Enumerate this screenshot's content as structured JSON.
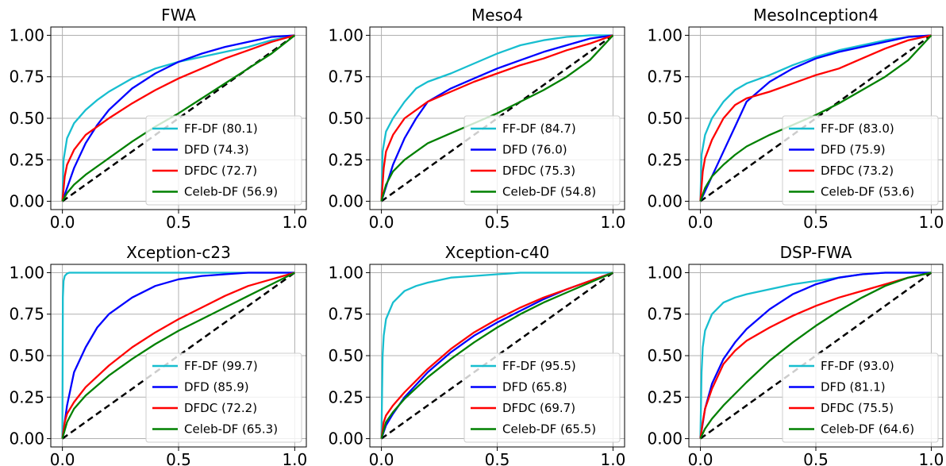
{
  "chart_data": [
    {
      "type": "line",
      "title": "FWA",
      "xticks": [
        "0.0",
        "0.5",
        "1.0"
      ],
      "yticks": [
        "0.00",
        "0.25",
        "0.50",
        "0.75",
        "1.00"
      ],
      "xlim": [
        0,
        1
      ],
      "ylim": [
        0,
        1
      ],
      "grid": true,
      "legend_position": "lower-right",
      "diagonal": true,
      "series": [
        {
          "name": "FF-DF",
          "label": "FF-DF (80.1)",
          "color": "#17becf",
          "x": [
            0,
            0.005,
            0.02,
            0.05,
            0.1,
            0.15,
            0.2,
            0.3,
            0.4,
            0.5,
            0.6,
            0.7,
            0.8,
            0.9,
            1.0
          ],
          "y": [
            0,
            0.25,
            0.38,
            0.47,
            0.55,
            0.61,
            0.66,
            0.74,
            0.8,
            0.84,
            0.87,
            0.9,
            0.93,
            0.97,
            1.0
          ]
        },
        {
          "name": "DFD",
          "label": "DFD (74.3)",
          "color": "#0000ff",
          "x": [
            0,
            0.05,
            0.1,
            0.15,
            0.2,
            0.3,
            0.4,
            0.5,
            0.6,
            0.7,
            0.8,
            0.9,
            1.0
          ],
          "y": [
            0,
            0.2,
            0.35,
            0.46,
            0.55,
            0.68,
            0.77,
            0.84,
            0.89,
            0.93,
            0.96,
            0.99,
            1.0
          ]
        },
        {
          "name": "DFDC",
          "label": "DFDC (72.7)",
          "color": "#ff0000",
          "x": [
            0,
            0.01,
            0.02,
            0.05,
            0.1,
            0.2,
            0.3,
            0.4,
            0.5,
            0.6,
            0.7,
            0.8,
            0.9,
            1.0
          ],
          "y": [
            0,
            0.15,
            0.22,
            0.31,
            0.4,
            0.5,
            0.59,
            0.67,
            0.74,
            0.8,
            0.86,
            0.91,
            0.96,
            1.0
          ]
        },
        {
          "name": "Celeb-DF",
          "label": "Celeb-DF (56.9)",
          "color": "#008000",
          "x": [
            0,
            0.02,
            0.05,
            0.1,
            0.2,
            0.3,
            0.4,
            0.5,
            0.6,
            0.7,
            0.8,
            0.9,
            1.0
          ],
          "y": [
            0,
            0.05,
            0.1,
            0.16,
            0.26,
            0.36,
            0.45,
            0.53,
            0.62,
            0.71,
            0.8,
            0.89,
            1.0
          ]
        }
      ]
    },
    {
      "type": "line",
      "title": "Meso4",
      "xticks": [
        "0.0",
        "0.5",
        "1.0"
      ],
      "yticks": [
        "0.00",
        "0.25",
        "0.50",
        "0.75",
        "1.00"
      ],
      "xlim": [
        0,
        1
      ],
      "ylim": [
        0,
        1
      ],
      "grid": true,
      "legend_position": "lower-right",
      "diagonal": true,
      "series": [
        {
          "name": "FF-DF",
          "label": "FF-DF (84.7)",
          "color": "#17becf",
          "x": [
            0,
            0.005,
            0.02,
            0.05,
            0.1,
            0.15,
            0.2,
            0.3,
            0.4,
            0.5,
            0.6,
            0.7,
            0.8,
            0.9,
            1.0
          ],
          "y": [
            0,
            0.3,
            0.42,
            0.5,
            0.6,
            0.68,
            0.72,
            0.77,
            0.83,
            0.89,
            0.94,
            0.97,
            0.99,
            1.0,
            1.0
          ]
        },
        {
          "name": "DFD",
          "label": "DFD (76.0)",
          "color": "#0000ff",
          "x": [
            0,
            0.05,
            0.1,
            0.15,
            0.2,
            0.3,
            0.4,
            0.5,
            0.6,
            0.7,
            0.8,
            0.9,
            1.0
          ],
          "y": [
            0,
            0.22,
            0.38,
            0.5,
            0.6,
            0.68,
            0.74,
            0.8,
            0.85,
            0.9,
            0.94,
            0.98,
            1.0
          ]
        },
        {
          "name": "DFDC",
          "label": "DFDC (75.3)",
          "color": "#ff0000",
          "x": [
            0,
            0.01,
            0.02,
            0.05,
            0.1,
            0.2,
            0.3,
            0.4,
            0.5,
            0.6,
            0.7,
            0.8,
            0.9,
            1.0
          ],
          "y": [
            0,
            0.2,
            0.3,
            0.4,
            0.5,
            0.6,
            0.66,
            0.72,
            0.77,
            0.82,
            0.86,
            0.91,
            0.95,
            1.0
          ]
        },
        {
          "name": "Celeb-DF",
          "label": "Celeb-DF (54.8)",
          "color": "#008000",
          "x": [
            0,
            0.02,
            0.05,
            0.1,
            0.15,
            0.2,
            0.3,
            0.4,
            0.5,
            0.6,
            0.7,
            0.8,
            0.9,
            1.0
          ],
          "y": [
            0,
            0.1,
            0.18,
            0.25,
            0.3,
            0.35,
            0.41,
            0.47,
            0.53,
            0.6,
            0.67,
            0.75,
            0.85,
            1.0
          ]
        }
      ]
    },
    {
      "type": "line",
      "title": "MesoInception4",
      "xticks": [
        "0.0",
        "0.5",
        "1.0"
      ],
      "yticks": [
        "0.00",
        "0.25",
        "0.50",
        "0.75",
        "1.00"
      ],
      "xlim": [
        0,
        1
      ],
      "ylim": [
        0,
        1
      ],
      "grid": true,
      "legend_position": "lower-right",
      "diagonal": true,
      "series": [
        {
          "name": "FF-DF",
          "label": "FF-DF (83.0)",
          "color": "#17becf",
          "x": [
            0,
            0.005,
            0.02,
            0.05,
            0.1,
            0.15,
            0.2,
            0.3,
            0.4,
            0.5,
            0.6,
            0.7,
            0.8,
            0.9,
            1.0
          ],
          "y": [
            0,
            0.28,
            0.4,
            0.5,
            0.6,
            0.67,
            0.71,
            0.76,
            0.82,
            0.87,
            0.91,
            0.94,
            0.97,
            0.99,
            1.0
          ]
        },
        {
          "name": "DFD",
          "label": "DFD (75.9)",
          "color": "#0000ff",
          "x": [
            0,
            0.05,
            0.1,
            0.15,
            0.2,
            0.3,
            0.4,
            0.5,
            0.6,
            0.7,
            0.8,
            0.9,
            1.0
          ],
          "y": [
            0,
            0.15,
            0.3,
            0.45,
            0.6,
            0.72,
            0.8,
            0.86,
            0.9,
            0.93,
            0.96,
            0.99,
            1.0
          ]
        },
        {
          "name": "DFDC",
          "label": "DFDC (73.2)",
          "color": "#ff0000",
          "x": [
            0,
            0.01,
            0.02,
            0.05,
            0.1,
            0.15,
            0.2,
            0.3,
            0.4,
            0.5,
            0.6,
            0.7,
            0.8,
            0.9,
            1.0
          ],
          "y": [
            0,
            0.18,
            0.26,
            0.37,
            0.5,
            0.58,
            0.62,
            0.66,
            0.71,
            0.76,
            0.8,
            0.86,
            0.92,
            0.97,
            1.0
          ]
        },
        {
          "name": "Celeb-DF",
          "label": "Celeb-DF (53.6)",
          "color": "#008000",
          "x": [
            0,
            0.02,
            0.05,
            0.1,
            0.15,
            0.2,
            0.3,
            0.4,
            0.5,
            0.6,
            0.7,
            0.8,
            0.9,
            1.0
          ],
          "y": [
            0,
            0.08,
            0.15,
            0.22,
            0.28,
            0.33,
            0.4,
            0.46,
            0.52,
            0.59,
            0.67,
            0.75,
            0.85,
            1.0
          ]
        }
      ]
    },
    {
      "type": "line",
      "title": "Xception-c23",
      "xticks": [
        "0.0",
        "0.5",
        "1.0"
      ],
      "yticks": [
        "0.00",
        "0.25",
        "0.50",
        "0.75",
        "1.00"
      ],
      "xlim": [
        0,
        1
      ],
      "ylim": [
        0,
        1
      ],
      "grid": true,
      "legend_position": "lower-right",
      "diagonal": true,
      "series": [
        {
          "name": "FF-DF",
          "label": "FF-DF (99.7)",
          "color": "#17becf",
          "x": [
            0,
            0.002,
            0.005,
            0.01,
            0.02,
            0.03,
            0.05,
            1.0
          ],
          "y": [
            0,
            0.85,
            0.95,
            0.98,
            0.995,
            1.0,
            1.0,
            1.0
          ]
        },
        {
          "name": "DFD",
          "label": "DFD (85.9)",
          "color": "#0000ff",
          "x": [
            0,
            0.02,
            0.05,
            0.1,
            0.15,
            0.2,
            0.3,
            0.4,
            0.5,
            0.6,
            0.7,
            0.8,
            0.9,
            1.0
          ],
          "y": [
            0,
            0.2,
            0.4,
            0.55,
            0.67,
            0.75,
            0.85,
            0.92,
            0.96,
            0.98,
            0.99,
            1.0,
            1.0,
            1.0
          ]
        },
        {
          "name": "DFDC",
          "label": "DFDC (72.2)",
          "color": "#ff0000",
          "x": [
            0,
            0.01,
            0.02,
            0.05,
            0.1,
            0.2,
            0.3,
            0.4,
            0.5,
            0.6,
            0.7,
            0.8,
            0.9,
            1.0
          ],
          "y": [
            0,
            0.1,
            0.15,
            0.22,
            0.31,
            0.44,
            0.55,
            0.64,
            0.72,
            0.79,
            0.86,
            0.92,
            0.96,
            1.0
          ]
        },
        {
          "name": "Celeb-DF",
          "label": "Celeb-DF (65.3)",
          "color": "#008000",
          "x": [
            0,
            0.02,
            0.05,
            0.1,
            0.2,
            0.3,
            0.4,
            0.5,
            0.6,
            0.7,
            0.8,
            0.9,
            1.0
          ],
          "y": [
            0,
            0.1,
            0.18,
            0.26,
            0.38,
            0.48,
            0.57,
            0.65,
            0.72,
            0.79,
            0.86,
            0.93,
            1.0
          ]
        }
      ]
    },
    {
      "type": "line",
      "title": "Xception-c40",
      "xticks": [
        "0.0",
        "0.5",
        "1.0"
      ],
      "yticks": [
        "0.00",
        "0.25",
        "0.50",
        "0.75",
        "1.00"
      ],
      "xlim": [
        0,
        1
      ],
      "ylim": [
        0,
        1
      ],
      "grid": true,
      "legend_position": "lower-right",
      "diagonal": true,
      "series": [
        {
          "name": "FF-DF",
          "label": "FF-DF (95.5)",
          "color": "#17becf",
          "x": [
            0,
            0.005,
            0.01,
            0.02,
            0.05,
            0.1,
            0.15,
            0.2,
            0.3,
            0.4,
            0.5,
            0.6,
            0.7,
            1.0
          ],
          "y": [
            0,
            0.5,
            0.62,
            0.72,
            0.82,
            0.89,
            0.92,
            0.94,
            0.97,
            0.98,
            0.99,
            1.0,
            1.0,
            1.0
          ]
        },
        {
          "name": "DFD",
          "label": "DFD (65.8)",
          "color": "#0000ff",
          "x": [
            0,
            0.02,
            0.05,
            0.1,
            0.2,
            0.3,
            0.4,
            0.5,
            0.6,
            0.7,
            0.8,
            0.9,
            1.0
          ],
          "y": [
            0,
            0.08,
            0.15,
            0.25,
            0.4,
            0.52,
            0.62,
            0.7,
            0.77,
            0.84,
            0.9,
            0.95,
            1.0
          ]
        },
        {
          "name": "DFDC",
          "label": "DFDC (69.7)",
          "color": "#ff0000",
          "x": [
            0,
            0.01,
            0.02,
            0.05,
            0.1,
            0.2,
            0.3,
            0.4,
            0.5,
            0.6,
            0.7,
            0.8,
            0.9,
            1.0
          ],
          "y": [
            0,
            0.1,
            0.14,
            0.2,
            0.28,
            0.42,
            0.54,
            0.64,
            0.72,
            0.79,
            0.85,
            0.9,
            0.95,
            1.0
          ]
        },
        {
          "name": "Celeb-DF",
          "label": "Celeb-DF (65.5)",
          "color": "#008000",
          "x": [
            0,
            0.02,
            0.05,
            0.1,
            0.2,
            0.3,
            0.4,
            0.5,
            0.6,
            0.7,
            0.8,
            0.9,
            1.0
          ],
          "y": [
            0,
            0.1,
            0.16,
            0.24,
            0.37,
            0.48,
            0.58,
            0.67,
            0.75,
            0.82,
            0.88,
            0.94,
            1.0
          ]
        }
      ]
    },
    {
      "type": "line",
      "title": "DSP-FWA",
      "xticks": [
        "0.0",
        "0.5",
        "1.0"
      ],
      "yticks": [
        "0.00",
        "0.25",
        "0.50",
        "0.75",
        "1.00"
      ],
      "xlim": [
        0,
        1
      ],
      "ylim": [
        0,
        1
      ],
      "grid": true,
      "legend_position": "lower-right",
      "diagonal": true,
      "series": [
        {
          "name": "FF-DF",
          "label": "FF-DF (93.0)",
          "color": "#17becf",
          "x": [
            0,
            0.005,
            0.01,
            0.02,
            0.05,
            0.1,
            0.15,
            0.2,
            0.3,
            0.4,
            0.5,
            0.6,
            0.7,
            0.8,
            0.9,
            1.0
          ],
          "y": [
            0,
            0.4,
            0.55,
            0.65,
            0.75,
            0.82,
            0.85,
            0.87,
            0.9,
            0.93,
            0.95,
            0.97,
            0.99,
            1.0,
            1.0,
            1.0
          ]
        },
        {
          "name": "DFD",
          "label": "DFD (81.1)",
          "color": "#0000ff",
          "x": [
            0,
            0.02,
            0.05,
            0.1,
            0.15,
            0.2,
            0.3,
            0.4,
            0.5,
            0.6,
            0.7,
            0.8,
            0.9,
            1.0
          ],
          "y": [
            0,
            0.18,
            0.33,
            0.48,
            0.58,
            0.66,
            0.78,
            0.87,
            0.93,
            0.97,
            0.99,
            1.0,
            1.0,
            1.0
          ]
        },
        {
          "name": "DFDC",
          "label": "DFDC (75.5)",
          "color": "#ff0000",
          "x": [
            0,
            0.01,
            0.02,
            0.05,
            0.1,
            0.15,
            0.2,
            0.3,
            0.4,
            0.5,
            0.6,
            0.7,
            0.8,
            0.9,
            1.0
          ],
          "y": [
            0,
            0.1,
            0.18,
            0.3,
            0.45,
            0.53,
            0.59,
            0.67,
            0.74,
            0.8,
            0.85,
            0.89,
            0.93,
            0.97,
            1.0
          ]
        },
        {
          "name": "Celeb-DF",
          "label": "Celeb-DF (64.6)",
          "color": "#008000",
          "x": [
            0,
            0.02,
            0.05,
            0.1,
            0.2,
            0.3,
            0.4,
            0.5,
            0.6,
            0.7,
            0.8,
            0.9,
            1.0
          ],
          "y": [
            0,
            0.06,
            0.12,
            0.2,
            0.34,
            0.47,
            0.58,
            0.68,
            0.77,
            0.85,
            0.92,
            0.97,
            1.0
          ]
        }
      ]
    }
  ]
}
